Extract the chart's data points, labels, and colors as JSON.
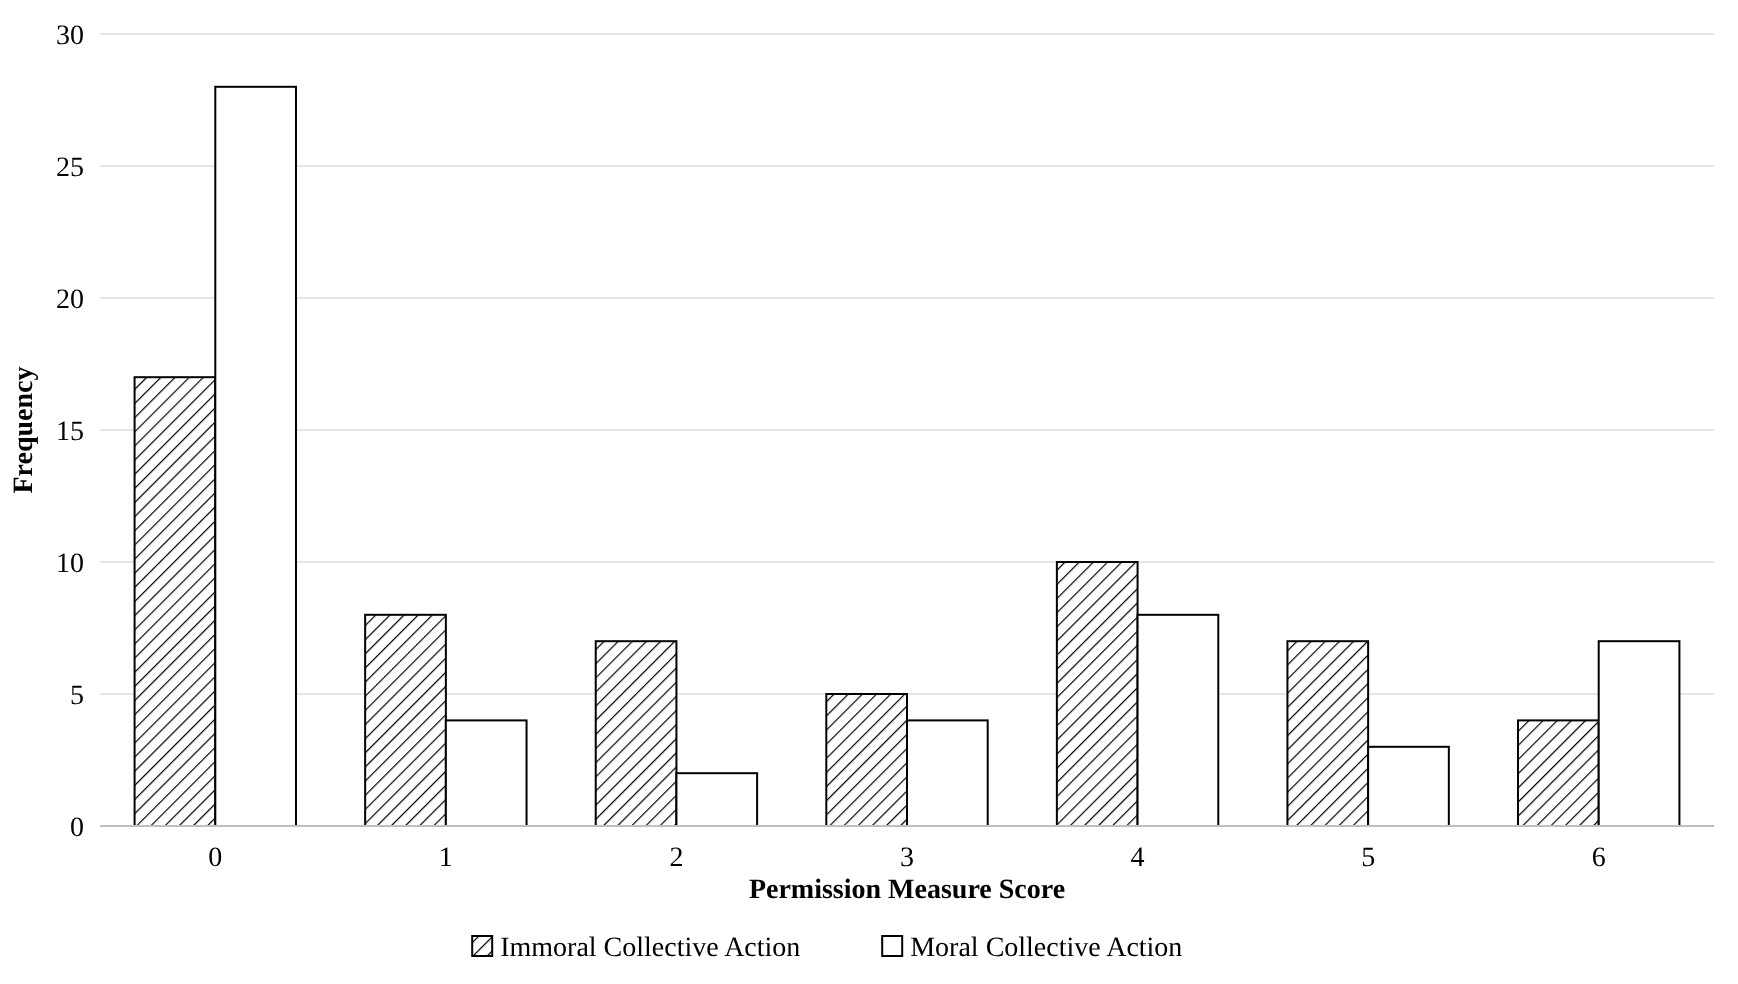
{
  "chart_data": {
    "type": "bar",
    "xlabel": "Permission Measure Score",
    "ylabel": "Frequency",
    "categories": [
      "0",
      "1",
      "2",
      "3",
      "4",
      "5",
      "6"
    ],
    "series": [
      {
        "name": "Immoral Collective Action",
        "color": "#000000",
        "values": [
          17,
          8,
          7,
          5,
          10,
          7,
          4
        ]
      },
      {
        "name": "Moral Collective Action",
        "color": "#ffffff",
        "values": [
          28,
          4,
          2,
          4,
          8,
          3,
          7
        ]
      }
    ],
    "ylim": [
      0,
      30
    ],
    "yticks": [
      0,
      5,
      10,
      15,
      20,
      25,
      30
    ],
    "grid": "y",
    "legend": "bottom"
  }
}
